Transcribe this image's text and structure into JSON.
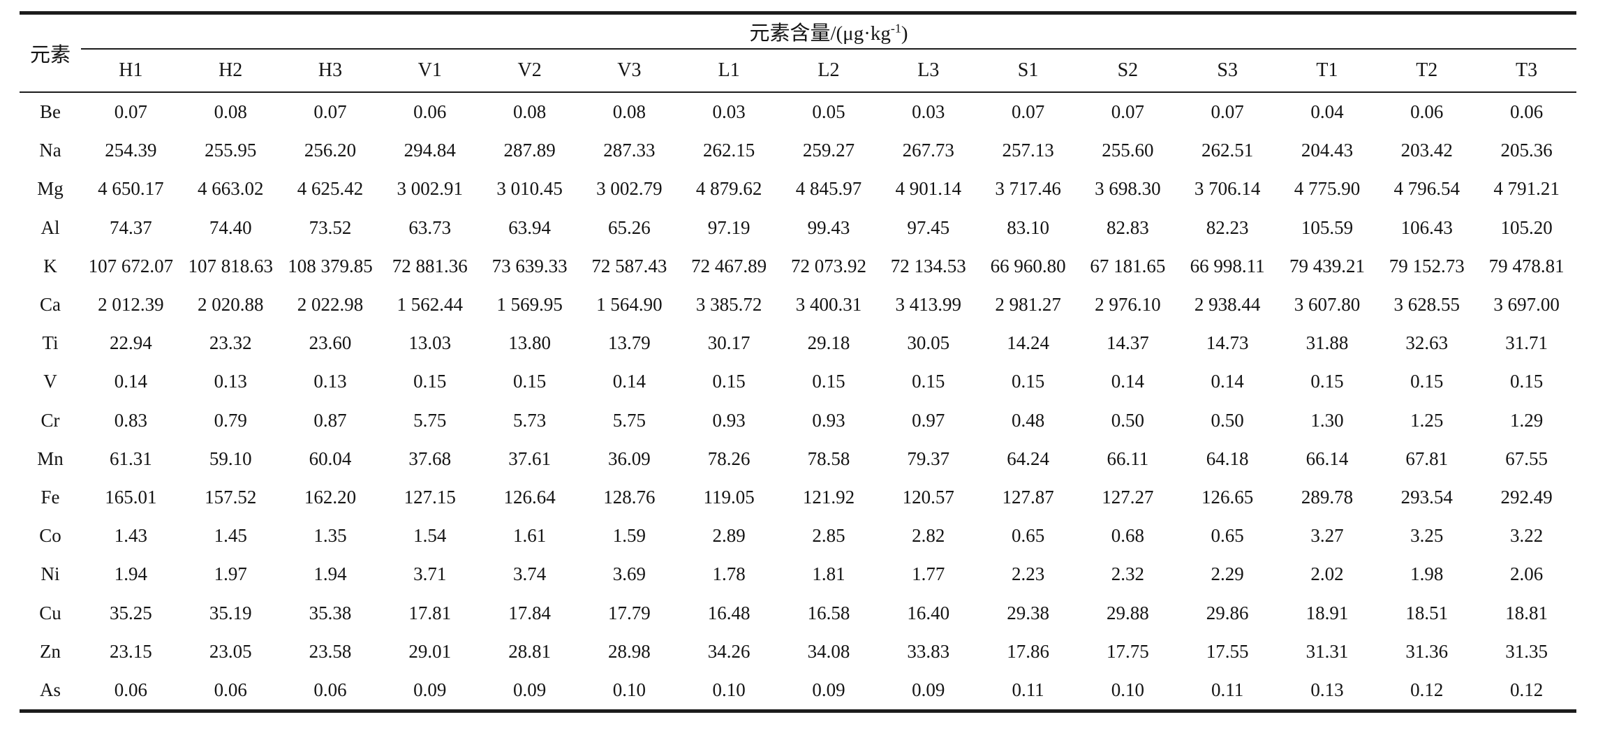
{
  "table": {
    "corner_header": "元素",
    "span_header": {
      "prefix": "元素含量/(μg·kg",
      "superscript": "-1",
      "suffix": ")"
    },
    "columns": [
      "H1",
      "H2",
      "H3",
      "V1",
      "V2",
      "V3",
      "L1",
      "L2",
      "L3",
      "S1",
      "S2",
      "S3",
      "T1",
      "T2",
      "T3"
    ],
    "rows": [
      {
        "element": "Be",
        "values": [
          "0.07",
          "0.08",
          "0.07",
          "0.06",
          "0.08",
          "0.08",
          "0.03",
          "0.05",
          "0.03",
          "0.07",
          "0.07",
          "0.07",
          "0.04",
          "0.06",
          "0.06"
        ]
      },
      {
        "element": "Na",
        "values": [
          "254.39",
          "255.95",
          "256.20",
          "294.84",
          "287.89",
          "287.33",
          "262.15",
          "259.27",
          "267.73",
          "257.13",
          "255.60",
          "262.51",
          "204.43",
          "203.42",
          "205.36"
        ]
      },
      {
        "element": "Mg",
        "values": [
          "4 650.17",
          "4 663.02",
          "4 625.42",
          "3 002.91",
          "3 010.45",
          "3 002.79",
          "4 879.62",
          "4 845.97",
          "4 901.14",
          "3 717.46",
          "3 698.30",
          "3 706.14",
          "4 775.90",
          "4 796.54",
          "4 791.21"
        ]
      },
      {
        "element": "Al",
        "values": [
          "74.37",
          "74.40",
          "73.52",
          "63.73",
          "63.94",
          "65.26",
          "97.19",
          "99.43",
          "97.45",
          "83.10",
          "82.83",
          "82.23",
          "105.59",
          "106.43",
          "105.20"
        ]
      },
      {
        "element": "K",
        "values": [
          "107 672.07",
          "107 818.63",
          "108 379.85",
          "72 881.36",
          "73 639.33",
          "72 587.43",
          "72 467.89",
          "72 073.92",
          "72 134.53",
          "66 960.80",
          "67 181.65",
          "66 998.11",
          "79 439.21",
          "79 152.73",
          "79 478.81"
        ]
      },
      {
        "element": "Ca",
        "values": [
          "2 012.39",
          "2 020.88",
          "2 022.98",
          "1 562.44",
          "1 569.95",
          "1 564.90",
          "3 385.72",
          "3 400.31",
          "3 413.99",
          "2 981.27",
          "2 976.10",
          "2 938.44",
          "3 607.80",
          "3 628.55",
          "3 697.00"
        ]
      },
      {
        "element": "Ti",
        "values": [
          "22.94",
          "23.32",
          "23.60",
          "13.03",
          "13.80",
          "13.79",
          "30.17",
          "29.18",
          "30.05",
          "14.24",
          "14.37",
          "14.73",
          "31.88",
          "32.63",
          "31.71"
        ]
      },
      {
        "element": "V",
        "values": [
          "0.14",
          "0.13",
          "0.13",
          "0.15",
          "0.15",
          "0.14",
          "0.15",
          "0.15",
          "0.15",
          "0.15",
          "0.14",
          "0.14",
          "0.15",
          "0.15",
          "0.15"
        ]
      },
      {
        "element": "Cr",
        "values": [
          "0.83",
          "0.79",
          "0.87",
          "5.75",
          "5.73",
          "5.75",
          "0.93",
          "0.93",
          "0.97",
          "0.48",
          "0.50",
          "0.50",
          "1.30",
          "1.25",
          "1.29"
        ]
      },
      {
        "element": "Mn",
        "values": [
          "61.31",
          "59.10",
          "60.04",
          "37.68",
          "37.61",
          "36.09",
          "78.26",
          "78.58",
          "79.37",
          "64.24",
          "66.11",
          "64.18",
          "66.14",
          "67.81",
          "67.55"
        ]
      },
      {
        "element": "Fe",
        "values": [
          "165.01",
          "157.52",
          "162.20",
          "127.15",
          "126.64",
          "128.76",
          "119.05",
          "121.92",
          "120.57",
          "127.87",
          "127.27",
          "126.65",
          "289.78",
          "293.54",
          "292.49"
        ]
      },
      {
        "element": "Co",
        "values": [
          "1.43",
          "1.45",
          "1.35",
          "1.54",
          "1.61",
          "1.59",
          "2.89",
          "2.85",
          "2.82",
          "0.65",
          "0.68",
          "0.65",
          "3.27",
          "3.25",
          "3.22"
        ]
      },
      {
        "element": "Ni",
        "values": [
          "1.94",
          "1.97",
          "1.94",
          "3.71",
          "3.74",
          "3.69",
          "1.78",
          "1.81",
          "1.77",
          "2.23",
          "2.32",
          "2.29",
          "2.02",
          "1.98",
          "2.06"
        ]
      },
      {
        "element": "Cu",
        "values": [
          "35.25",
          "35.19",
          "35.38",
          "17.81",
          "17.84",
          "17.79",
          "16.48",
          "16.58",
          "16.40",
          "29.38",
          "29.88",
          "29.86",
          "18.91",
          "18.51",
          "18.81"
        ]
      },
      {
        "element": "Zn",
        "values": [
          "23.15",
          "23.05",
          "23.58",
          "29.01",
          "28.81",
          "28.98",
          "34.26",
          "34.08",
          "33.83",
          "17.86",
          "17.75",
          "17.55",
          "31.31",
          "31.36",
          "31.35"
        ]
      },
      {
        "element": "As",
        "values": [
          "0.06",
          "0.06",
          "0.06",
          "0.09",
          "0.09",
          "0.10",
          "0.10",
          "0.09",
          "0.09",
          "0.11",
          "0.10",
          "0.11",
          "0.13",
          "0.12",
          "0.12"
        ]
      }
    ]
  }
}
